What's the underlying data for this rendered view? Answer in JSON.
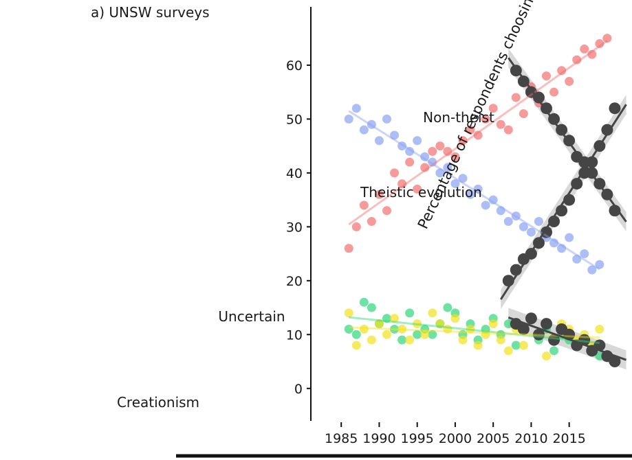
{
  "chart_data": [
    {
      "type": "scatter",
      "title": "a) UNSW surveys",
      "ylabel": "Percentage of respondents choosing each option",
      "y_ticks": [
        "0",
        "10",
        "20",
        "30",
        "40",
        "50",
        "60"
      ],
      "x_ticks": [
        "1985",
        "1990",
        "1995",
        "2000",
        "2005",
        "2010",
        "2015"
      ],
      "xlim": [
        1981,
        2022
      ],
      "ylim": [
        -5,
        67
      ],
      "grid": false,
      "trend_bands": true,
      "colors": {
        "Non-theist": "#f26f6f",
        "Theistic evolution": "#8aa2f2",
        "Uncertain": "#2fd67a",
        "Creationism": "#f2e21c",
        "overlay": "#454545",
        "band": "#b8b8b8"
      },
      "annotations": [
        "Non-theist",
        "Theistic evolution",
        "Uncertain",
        "Creationism"
      ],
      "series": [
        {
          "name": "Non-theist",
          "x": [
            1986,
            1987,
            1988,
            1989,
            1990,
            1991,
            1992,
            1993,
            1994,
            1995,
            1996,
            1997,
            1998,
            1999,
            2000,
            2001,
            2002,
            2003,
            2004,
            2005,
            2006,
            2007,
            2008,
            2009,
            2010,
            2011,
            2012,
            2013,
            2014,
            2015,
            2016,
            2017,
            2018,
            2019,
            2020
          ],
          "values": [
            26,
            30,
            34,
            31,
            36,
            33,
            40,
            38,
            42,
            37,
            41,
            44,
            45,
            44,
            43,
            46,
            48,
            47,
            50,
            52,
            49,
            48,
            54,
            51,
            56,
            53,
            58,
            55,
            59,
            57,
            61,
            63,
            62,
            64,
            65
          ]
        },
        {
          "name": "Theistic evolution",
          "x": [
            1986,
            1987,
            1988,
            1989,
            1990,
            1991,
            1992,
            1993,
            1994,
            1995,
            1996,
            1997,
            1998,
            1999,
            2000,
            2001,
            2002,
            2003,
            2004,
            2005,
            2006,
            2007,
            2008,
            2009,
            2010,
            2011,
            2012,
            2013,
            2014,
            2015,
            2016,
            2017,
            2018,
            2019
          ],
          "values": [
            50,
            52,
            48,
            49,
            46,
            50,
            47,
            45,
            44,
            46,
            43,
            42,
            40,
            41,
            38,
            39,
            36,
            37,
            34,
            35,
            33,
            31,
            32,
            30,
            29,
            31,
            28,
            27,
            26,
            28,
            24,
            25,
            22,
            23
          ]
        },
        {
          "name": "Uncertain",
          "x": [
            1986,
            1987,
            1988,
            1989,
            1990,
            1991,
            1992,
            1993,
            1994,
            1995,
            1996,
            1997,
            1998,
            1999,
            2000,
            2001,
            2002,
            2003,
            2004,
            2005,
            2006,
            2007,
            2008,
            2009,
            2010,
            2011,
            2012,
            2013,
            2014,
            2015,
            2016,
            2017,
            2018,
            2019
          ],
          "values": [
            11,
            10,
            16,
            15,
            12,
            13,
            11,
            9,
            14,
            10,
            11,
            10,
            12,
            15,
            14,
            10,
            12,
            9,
            11,
            13,
            10,
            12,
            8,
            11,
            13,
            9,
            11,
            7,
            10,
            9,
            8,
            9,
            7,
            6
          ]
        },
        {
          "name": "Creationism",
          "x": [
            1986,
            1987,
            1988,
            1989,
            1990,
            1991,
            1992,
            1993,
            1994,
            1995,
            1996,
            1997,
            1998,
            1999,
            2000,
            2001,
            2002,
            2003,
            2004,
            2005,
            2006,
            2007,
            2008,
            2009,
            2010,
            2011,
            2012,
            2013,
            2014,
            2015,
            2016,
            2017,
            2018,
            2019
          ],
          "values": [
            14,
            8,
            11,
            9,
            12,
            10,
            13,
            11,
            9,
            12,
            10,
            14,
            12,
            11,
            13,
            9,
            11,
            8,
            10,
            12,
            9,
            7,
            11,
            8,
            13,
            10,
            6,
            9,
            12,
            11,
            9,
            10,
            8,
            11
          ]
        }
      ],
      "overlay_series": [
        {
          "x": [
            2008,
            2009,
            2010,
            2011,
            2012,
            2013,
            2014,
            2015,
            2016,
            2017,
            2018,
            2019,
            2020,
            2021
          ],
          "values": [
            59,
            57,
            55,
            54,
            52,
            50,
            48,
            46,
            43,
            42,
            40,
            38,
            36,
            33
          ]
        },
        {
          "x": [
            2007,
            2008,
            2009,
            2010,
            2011,
            2012,
            2013,
            2014,
            2015,
            2016,
            2017,
            2018,
            2019,
            2020,
            2021
          ],
          "values": [
            20,
            22,
            24,
            25,
            27,
            29,
            31,
            33,
            35,
            38,
            40,
            42,
            45,
            48,
            52
          ]
        },
        {
          "x": [
            2008,
            2009,
            2010,
            2011,
            2012,
            2013,
            2014,
            2015,
            2016,
            2017,
            2018,
            2019,
            2020,
            2021
          ],
          "values": [
            12,
            11,
            13,
            10,
            12,
            9,
            11,
            10,
            8,
            9,
            7,
            8,
            6,
            5
          ]
        }
      ]
    }
  ]
}
